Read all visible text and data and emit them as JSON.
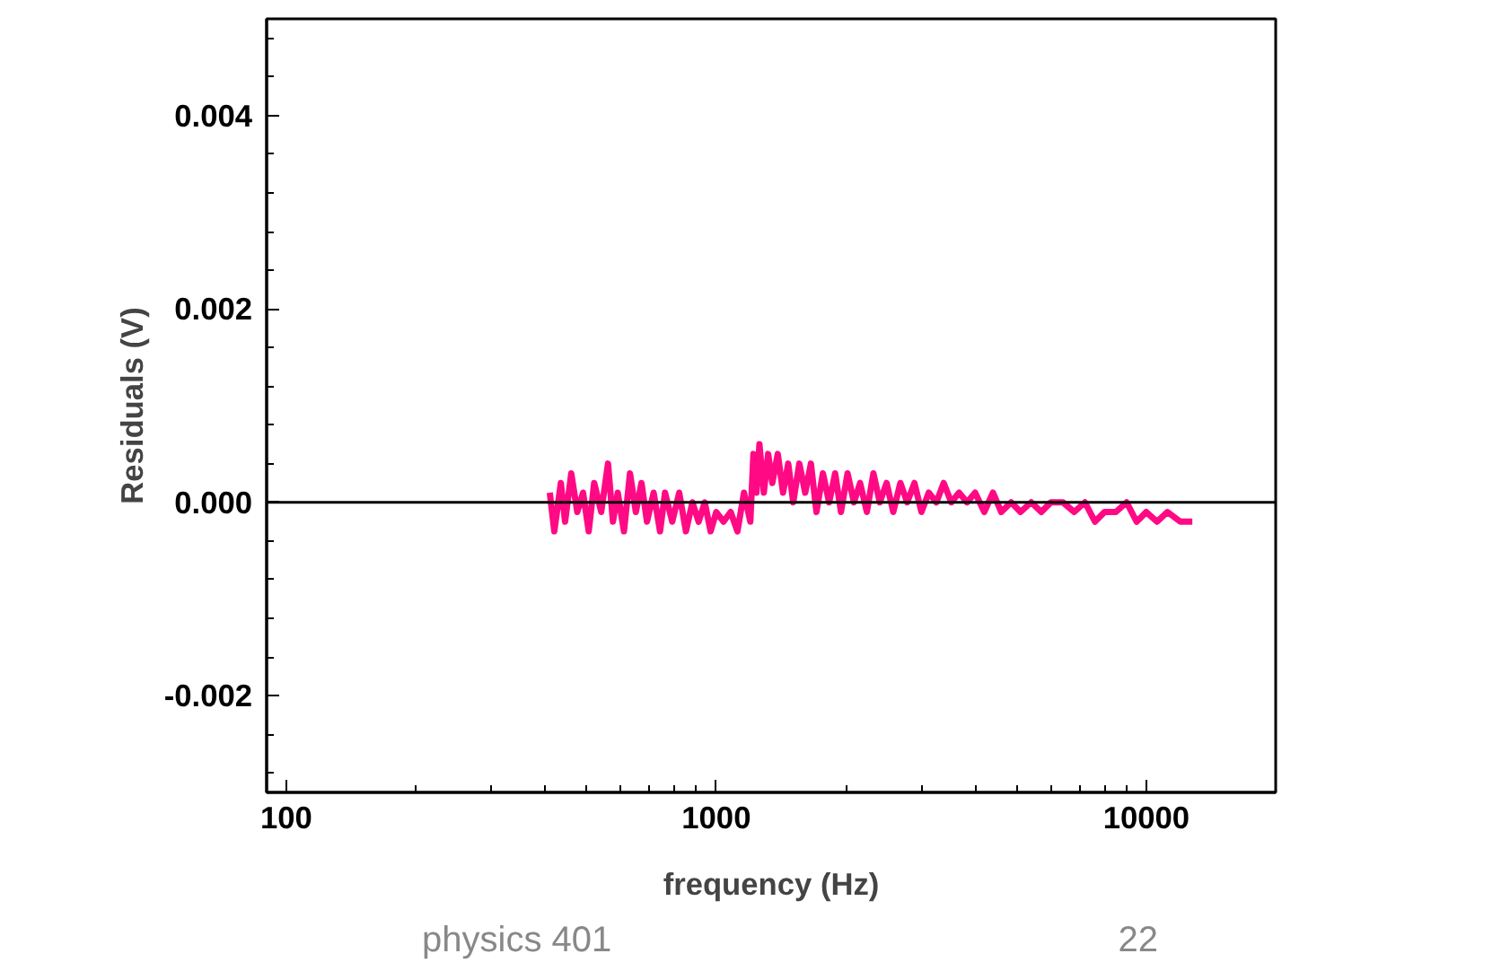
{
  "chart_data": {
    "type": "line",
    "xlabel": "frequency (Hz)",
    "ylabel": "Residuals (V)",
    "log": "x",
    "xlim": [
      90,
      20000
    ],
    "ylim": [
      -0.003,
      0.005
    ],
    "xticks": [
      100,
      1000,
      10000
    ],
    "yticks": [
      {
        "value": -0.002,
        "label": "-0.002"
      },
      {
        "value": 0,
        "label": "0.000"
      },
      {
        "value": 0.002,
        "label": "0.002"
      },
      {
        "value": 0.004,
        "label": "0.004"
      }
    ],
    "grid": false,
    "marker": "none",
    "line_style": "solid",
    "ref_lines": [
      {
        "axis": "y",
        "value": 0,
        "label": null,
        "color": "#000000"
      }
    ],
    "annotations": [
      "physics 401",
      "22"
    ],
    "series": [
      {
        "color": "#ff0a84",
        "x": [
          410,
          420,
          435,
          445,
          460,
          475,
          490,
          505,
          520,
          540,
          560,
          575,
          590,
          610,
          630,
          650,
          670,
          690,
          715,
          740,
          760,
          790,
          820,
          850,
          880,
          910,
          940,
          970,
          1000,
          1040,
          1080,
          1120,
          1160,
          1200,
          1220,
          1240,
          1260,
          1290,
          1320,
          1350,
          1390,
          1430,
          1470,
          1510,
          1560,
          1610,
          1660,
          1710,
          1770,
          1830,
          1890,
          1950,
          2020,
          2090,
          2160,
          2240,
          2320,
          2400,
          2490,
          2580,
          2680,
          2780,
          2890,
          3000,
          3120,
          3250,
          3380,
          3520,
          3670,
          3830,
          4000,
          4200,
          4400,
          4600,
          4850,
          5100,
          5400,
          5700,
          6000,
          6400,
          6800,
          7200,
          7600,
          8000,
          8500,
          9000,
          9500,
          10000,
          10600,
          11200,
          12000,
          12800
        ],
        "values": [
          0.0001,
          -0.0003,
          0.0002,
          -0.0002,
          0.0003,
          -0.0001,
          0.0001,
          -0.0003,
          0.0002,
          -0.0001,
          0.0004,
          -0.0002,
          0.0001,
          -0.0003,
          0.0003,
          -0.0001,
          0.0002,
          -0.0002,
          0.0001,
          -0.0003,
          0.0001,
          -0.0002,
          0.0001,
          -0.0003,
          0.0,
          -0.0002,
          0.0,
          -0.0003,
          -0.0001,
          -0.0002,
          -0.0001,
          -0.0003,
          0.0001,
          -0.0002,
          0.0005,
          0.0001,
          0.0006,
          0.0001,
          0.0005,
          0.0002,
          0.0005,
          0.0001,
          0.0004,
          0.0,
          0.0004,
          0.0001,
          0.0004,
          -0.0001,
          0.0003,
          0.0,
          0.0003,
          -0.0001,
          0.0003,
          0.0,
          0.0002,
          -0.0001,
          0.0003,
          0.0,
          0.0002,
          -0.0001,
          0.0002,
          0.0,
          0.0002,
          -0.0001,
          0.0001,
          0.0,
          0.0002,
          0.0,
          0.0001,
          0.0,
          0.0001,
          -0.0001,
          0.0001,
          -0.0001,
          0.0,
          -0.0001,
          0.0,
          -0.0001,
          0.0,
          0.0,
          -0.0001,
          0.0,
          -0.0002,
          -0.0001,
          -0.0001,
          0.0,
          -0.0002,
          -0.0001,
          -0.0002,
          -0.0001,
          -0.0002,
          -0.0002
        ]
      }
    ]
  }
}
